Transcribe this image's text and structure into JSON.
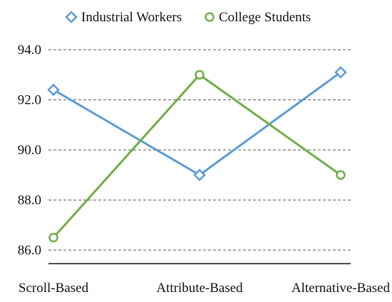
{
  "chart_data": {
    "type": "line",
    "title": "",
    "xlabel": "",
    "ylabel": "",
    "categories": [
      "Scroll-Based",
      "Attribute-Based",
      "Alternative-Based"
    ],
    "series": [
      {
        "name": "Industrial Workers",
        "values": [
          92.4,
          89.0,
          93.1
        ],
        "color": "#5b9bd5",
        "marker": "diamond"
      },
      {
        "name": "College Students",
        "values": [
          86.5,
          93.0,
          89.0
        ],
        "color": "#70ad47",
        "marker": "circle"
      }
    ],
    "ylim": [
      86.0,
      94.0
    ],
    "yticks": [
      "94.0",
      "92.0",
      "90.0",
      "88.0",
      "86.0"
    ],
    "grid": true,
    "legend_position": "top"
  }
}
